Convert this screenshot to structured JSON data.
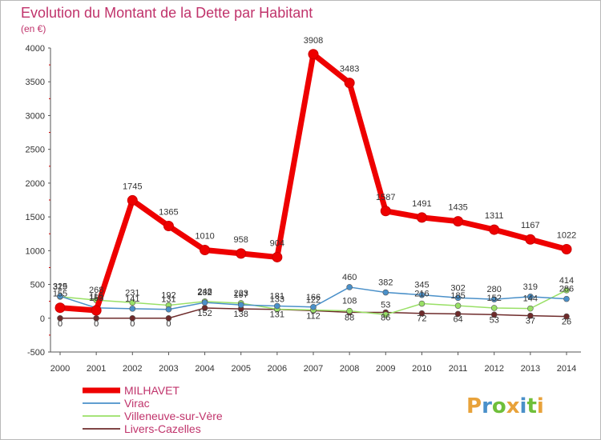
{
  "chart_data": {
    "type": "line",
    "title": "Evolution du Montant de la Dette par Habitant",
    "unit_label": "(en €)",
    "x": [
      "2000",
      "2001",
      "2002",
      "2003",
      "2004",
      "2005",
      "2006",
      "2007",
      "2008",
      "2009",
      "2010",
      "2011",
      "2012",
      "2013",
      "2014"
    ],
    "ylim": [
      -500,
      4000
    ],
    "yticks": [
      -500,
      0,
      500,
      1000,
      1500,
      2000,
      2500,
      3000,
      3500,
      4000
    ],
    "grid": false,
    "legend_position": "bottom-left",
    "series": [
      {
        "name": "MILHAVET",
        "color": "#ee0000",
        "values": [
          155,
          116,
          1745,
          1365,
          1010,
          958,
          904,
          3908,
          3483,
          1587,
          1491,
          1435,
          1311,
          1167,
          1022
        ],
        "labels": [
          "155",
          "116",
          "1745",
          "1365",
          "1010",
          "958",
          "904",
          "3908",
          "3483",
          "1587",
          "1491",
          "1435",
          "1311",
          "1167",
          "1022"
        ]
      },
      {
        "name": "Virac",
        "color": "#4a90c9",
        "values": [
          325,
          153,
          141,
          131,
          232,
          197,
          181,
          166,
          460,
          382,
          345,
          302,
          280,
          319,
          286
        ],
        "labels": [
          "325",
          "153",
          "141",
          "131",
          "232",
          "197",
          "181",
          "166",
          "460",
          "382",
          "345",
          "302",
          "280",
          "319",
          "286"
        ]
      },
      {
        "name": "Villeneuve-sur-Vère",
        "color": "#99e066",
        "values": [
          319,
          268,
          231,
          192,
          248,
          223,
          133,
          122,
          108,
          53,
          216,
          185,
          152,
          144,
          414
        ],
        "labels": [
          "319",
          "268",
          "231",
          "192",
          "248",
          "223",
          "133",
          "122",
          "108",
          "53",
          "216",
          "185",
          "152",
          "144",
          "414"
        ]
      },
      {
        "name": "Livers-Cazelles",
        "color": "#6e2b2b",
        "values": [
          0,
          0,
          0,
          0,
          152,
          138,
          131,
          112,
          88,
          86,
          72,
          64,
          53,
          37,
          26
        ],
        "labels": [
          "0",
          "0",
          "0",
          "0",
          "152",
          "138",
          "131",
          "112",
          "88",
          "86",
          "72",
          "64",
          "53",
          "37",
          "26"
        ]
      }
    ]
  },
  "branding": {
    "logo_text": "Proxiti",
    "logo_letters": [
      {
        "ch": "P",
        "color": "#e8a23a"
      },
      {
        "ch": "r",
        "color": "#4a90c9"
      },
      {
        "ch": "o",
        "color": "#6fbf3a"
      },
      {
        "ch": "x",
        "color": "#e8a23a"
      },
      {
        "ch": "i",
        "color": "#4a90c9"
      },
      {
        "ch": "t",
        "color": "#6fbf3a"
      },
      {
        "ch": "i",
        "color": "#e8a23a"
      }
    ]
  }
}
